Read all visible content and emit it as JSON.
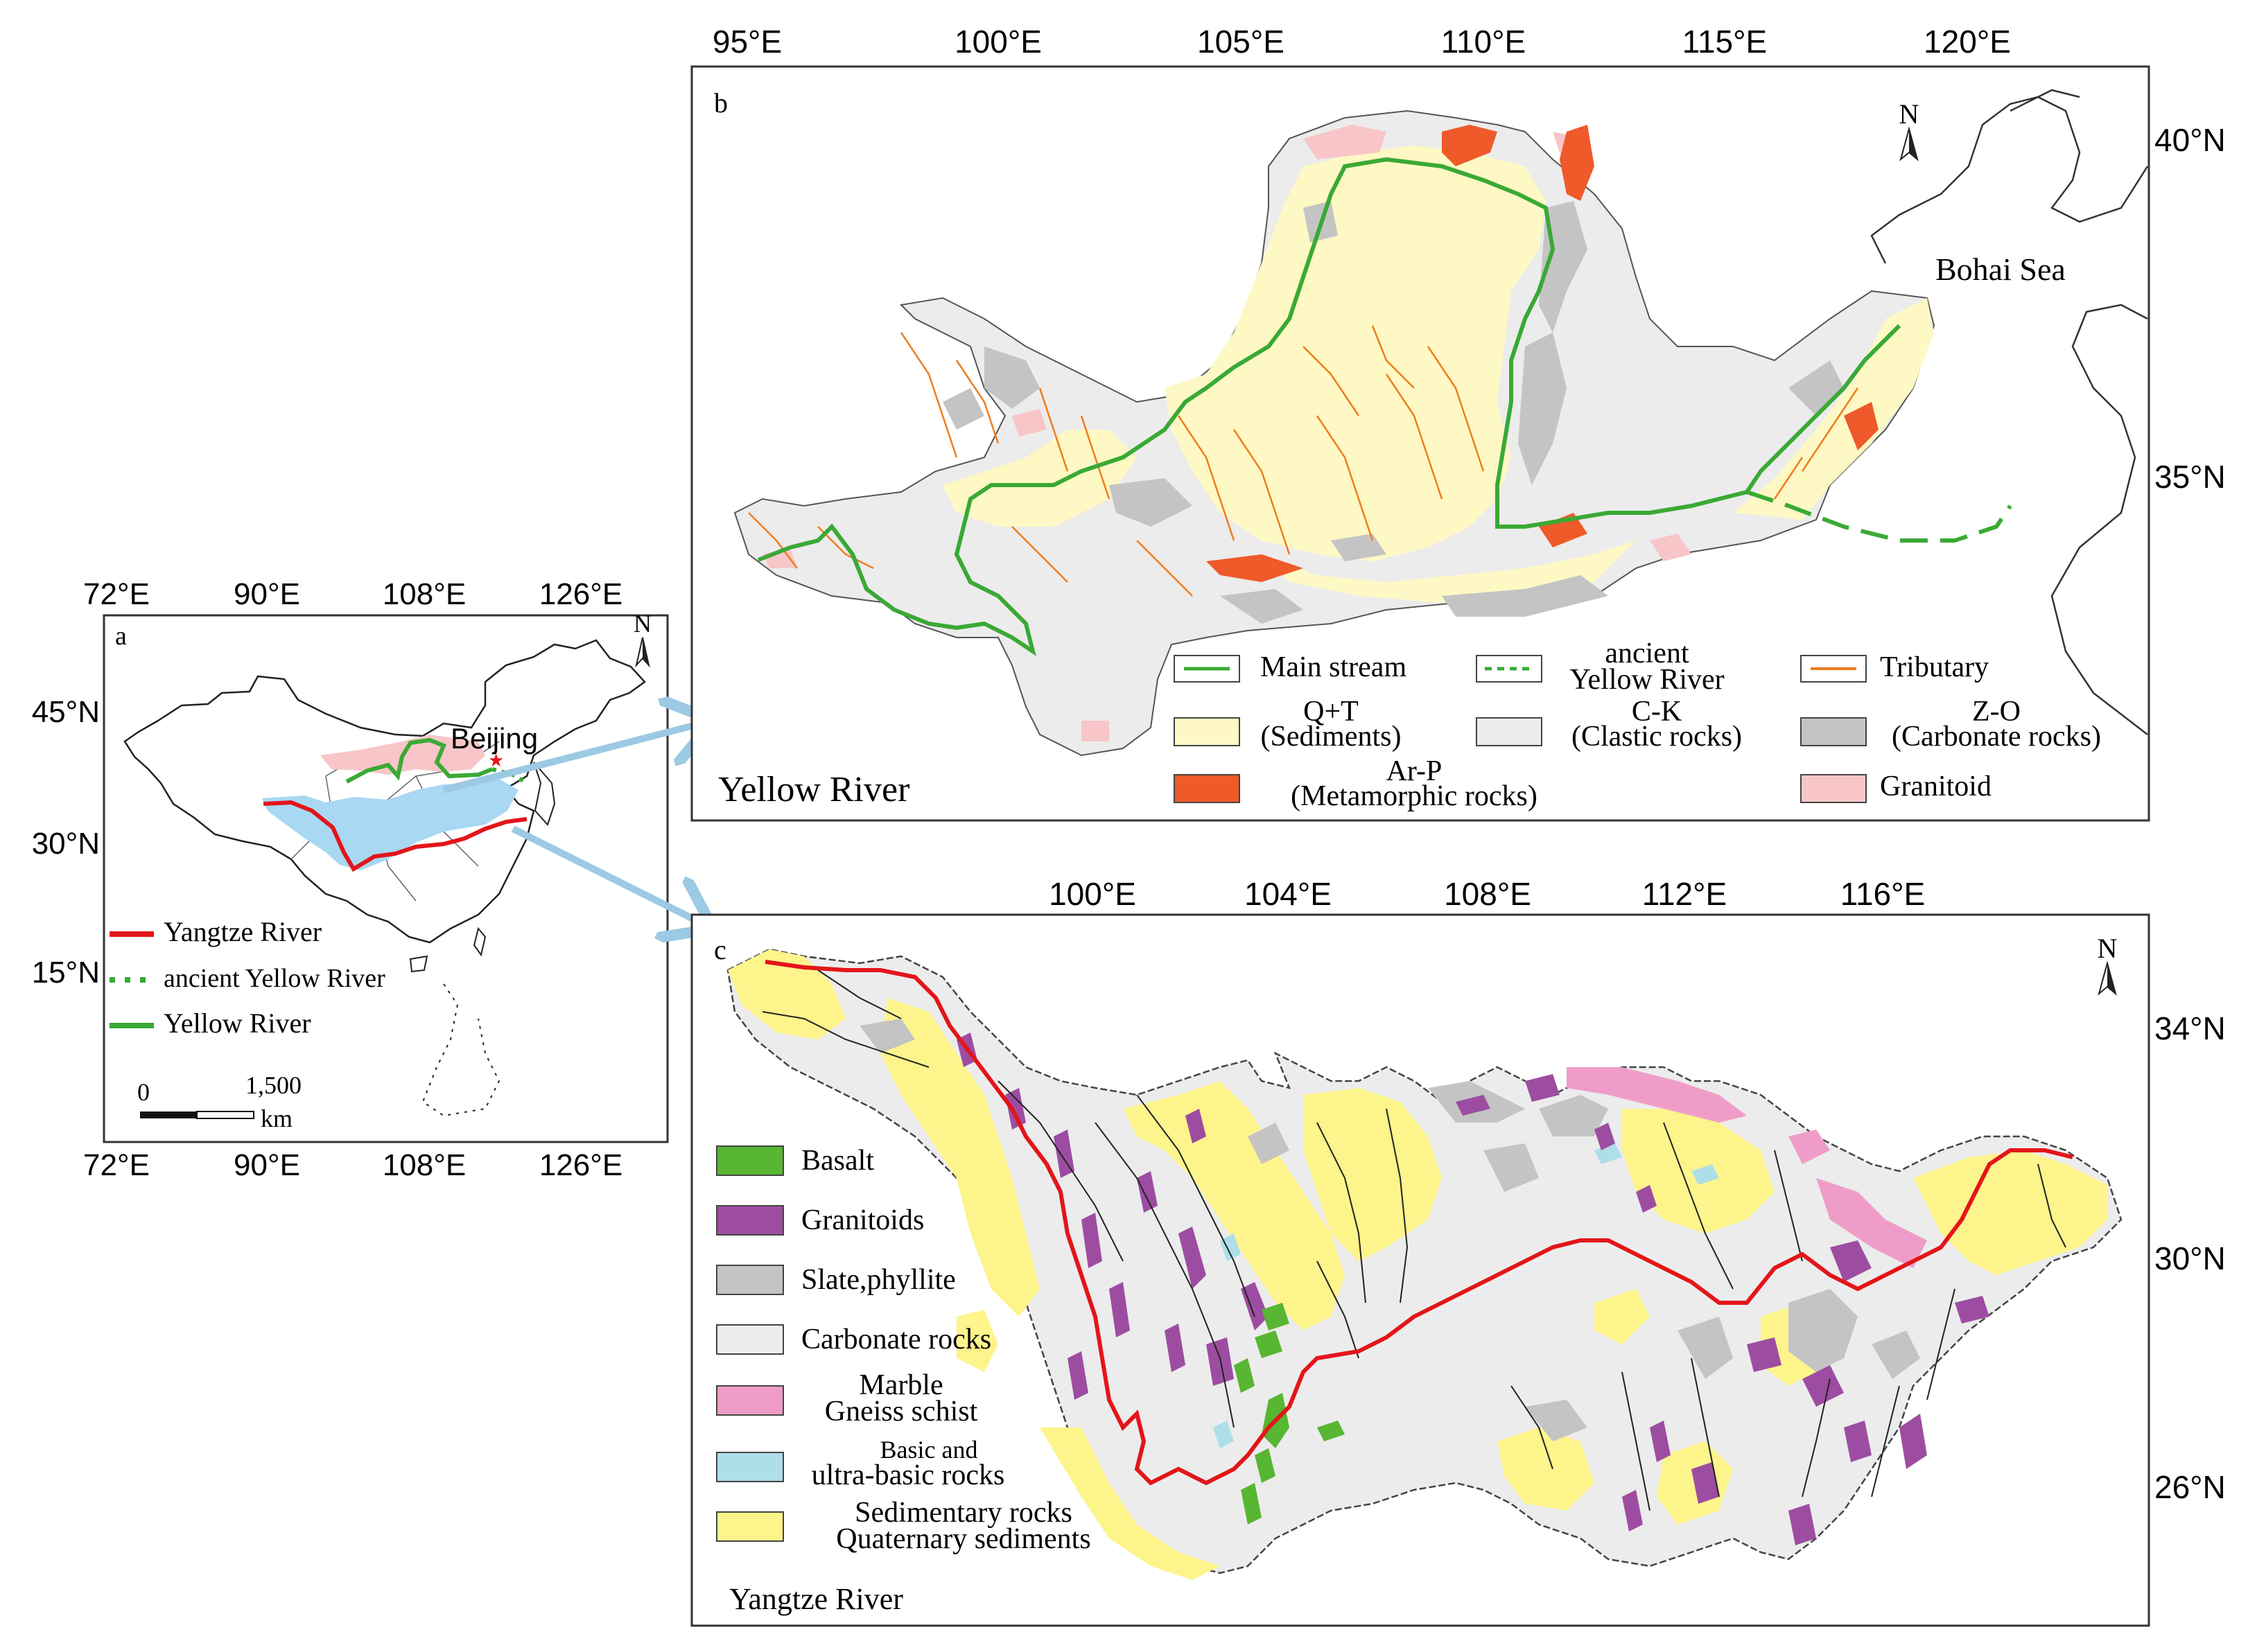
{
  "panel_a": {
    "letter": "a",
    "lon_ticks": [
      "72°E",
      "90°E",
      "108°E",
      "126°E"
    ],
    "lat_ticks": [
      "45°N",
      "30°N",
      "15°N"
    ],
    "north_label": "N",
    "city": "Beijing",
    "legend": [
      {
        "label": "Yangtze River",
        "color": "#e3151a",
        "style": "solid"
      },
      {
        "label": "ancient Yellow River",
        "color": "#3aa935",
        "style": "dotted"
      },
      {
        "label": "Yellow River",
        "color": "#3aa935",
        "style": "solid"
      }
    ],
    "scale": {
      "zero": "0",
      "max": "1,500",
      "unit": "km"
    }
  },
  "panel_b": {
    "letter": "b",
    "lon_ticks": [
      "95°E",
      "100°E",
      "105°E",
      "110°E",
      "115°E",
      "120°E"
    ],
    "lat_ticks": [
      "40°N",
      "35°N"
    ],
    "north_label": "N",
    "sea_label": "Bohai Sea",
    "river_name": "Yellow River",
    "legend": [
      {
        "label": "Main stream",
        "type": "line",
        "color": "#3aa935",
        "style": "solid"
      },
      {
        "label": "ancient\nYellow River",
        "type": "line",
        "color": "#3aa935",
        "style": "dashed"
      },
      {
        "label": "Tributary",
        "type": "line",
        "color": "#f07c1d",
        "style": "solid"
      },
      {
        "label": "Q+T\n(Sediments)",
        "type": "patch",
        "color": "#fdf8c4"
      },
      {
        "label": "C-K\n(Clastic rocks)",
        "type": "patch",
        "color": "#ececec"
      },
      {
        "label": "Z-O\n(Carbonate rocks)",
        "type": "patch",
        "color": "#c4c4c4"
      },
      {
        "label": "Ar-P\n(Metamorphic rocks)",
        "type": "patch",
        "color": "#ee5a2a"
      },
      {
        "label": "Granitoid",
        "type": "patch",
        "color": "#f8c6c8"
      }
    ]
  },
  "panel_c": {
    "letter": "c",
    "lon_ticks": [
      "100°E",
      "104°E",
      "108°E",
      "112°E",
      "116°E"
    ],
    "lat_ticks": [
      "34°N",
      "30°N",
      "26°N"
    ],
    "north_label": "N",
    "river_name": "Yangtze River",
    "legend": [
      {
        "label": "Basalt",
        "color": "#57b632"
      },
      {
        "label": "Granitoids",
        "color": "#9d4da1"
      },
      {
        "label": "Slate,phyllite",
        "color": "#c4c4c4"
      },
      {
        "label": "Carbonate rocks",
        "color": "#ececec"
      },
      {
        "label": "Marble\nGneiss schist",
        "color": "#ef9dc8"
      },
      {
        "label": "Basic and\nultra-basic rocks",
        "color": "#aedfe8"
      },
      {
        "label": "Sedimentary rocks\nQuaternary sediments",
        "color": "#fdf48c"
      }
    ]
  },
  "colors": {
    "arrow": "#9cc9e3",
    "yangtze": "#e3151a",
    "yellow_river": "#3aa935",
    "tributary_b": "#f07c1d",
    "basin_fill_a": "#a9d8f3",
    "granitoid_pink": "#f8c6c8"
  }
}
